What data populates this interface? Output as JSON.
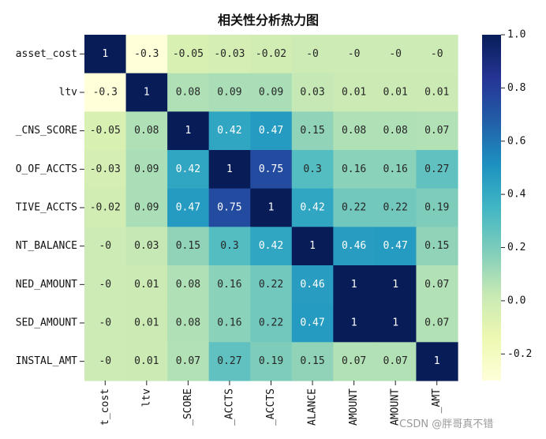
{
  "chart_data": {
    "type": "heatmap",
    "title": "相关性分析热力图",
    "row_labels": [
      "asset_cost",
      "ltv",
      "_CNS_SCORE",
      "O_OF_ACCTS",
      "TIVE_ACCTS",
      "NT_BALANCE",
      "NED_AMOUNT",
      "SED_AMOUNT",
      "INSTAL_AMT"
    ],
    "col_labels": [
      "t_cost",
      "ltv",
      "_SCORE",
      "_ACCTS",
      "_ACCTS",
      "ALANCE",
      "AMOUNT",
      "AMOUNT",
      "_AMT"
    ],
    "values": [
      [
        1,
        -0.3,
        -0.05,
        -0.03,
        -0.02,
        0,
        0,
        0,
        0
      ],
      [
        -0.3,
        1,
        0.08,
        0.09,
        0.09,
        0.03,
        0.01,
        0.01,
        0.01
      ],
      [
        -0.05,
        0.08,
        1,
        0.42,
        0.47,
        0.15,
        0.08,
        0.08,
        0.07
      ],
      [
        -0.03,
        0.09,
        0.42,
        1,
        0.75,
        0.3,
        0.16,
        0.16,
        0.27
      ],
      [
        -0.02,
        0.09,
        0.47,
        0.75,
        1,
        0.42,
        0.22,
        0.22,
        0.19
      ],
      [
        0,
        0.03,
        0.15,
        0.3,
        0.42,
        1,
        0.46,
        0.47,
        0.15
      ],
      [
        0,
        0.01,
        0.08,
        0.16,
        0.22,
        0.46,
        1,
        1,
        0.07
      ],
      [
        0,
        0.01,
        0.08,
        0.16,
        0.22,
        0.47,
        1,
        1,
        0.07
      ],
      [
        0,
        0.01,
        0.07,
        0.27,
        0.19,
        0.15,
        0.07,
        0.07,
        1
      ]
    ],
    "cell_text": [
      [
        "1",
        "-0.3",
        "-0.05",
        "-0.03",
        "-0.02",
        "-0",
        "-0",
        "-0",
        "-0"
      ],
      [
        "-0.3",
        "1",
        "0.08",
        "0.09",
        "0.09",
        "0.03",
        "0.01",
        "0.01",
        "0.01"
      ],
      [
        "-0.05",
        "0.08",
        "1",
        "0.42",
        "0.47",
        "0.15",
        "0.08",
        "0.08",
        "0.07"
      ],
      [
        "-0.03",
        "0.09",
        "0.42",
        "1",
        "0.75",
        "0.3",
        "0.16",
        "0.16",
        "0.27"
      ],
      [
        "-0.02",
        "0.09",
        "0.47",
        "0.75",
        "1",
        "0.42",
        "0.22",
        "0.22",
        "0.19"
      ],
      [
        "-0",
        "0.03",
        "0.15",
        "0.3",
        "0.42",
        "1",
        "0.46",
        "0.47",
        "0.15"
      ],
      [
        "-0",
        "0.01",
        "0.08",
        "0.16",
        "0.22",
        "0.46",
        "1",
        "1",
        "0.07"
      ],
      [
        "-0",
        "0.01",
        "0.08",
        "0.16",
        "0.22",
        "0.47",
        "1",
        "1",
        "0.07"
      ],
      [
        "-0",
        "0.01",
        "0.07",
        "0.27",
        "0.19",
        "0.15",
        "0.07",
        "0.07",
        "1"
      ]
    ],
    "colormap": "YlGnBu",
    "color_range": [
      -0.3,
      1.0
    ],
    "colorbar_ticks": [
      "1.0",
      "0.8",
      "0.6",
      "0.4",
      "0.2",
      "0.0",
      "-0.2"
    ],
    "colorbar_tick_values": [
      1.0,
      0.8,
      0.6,
      0.4,
      0.2,
      0.0,
      -0.2
    ]
  },
  "watermark": "CSDN @胖哥真不错"
}
